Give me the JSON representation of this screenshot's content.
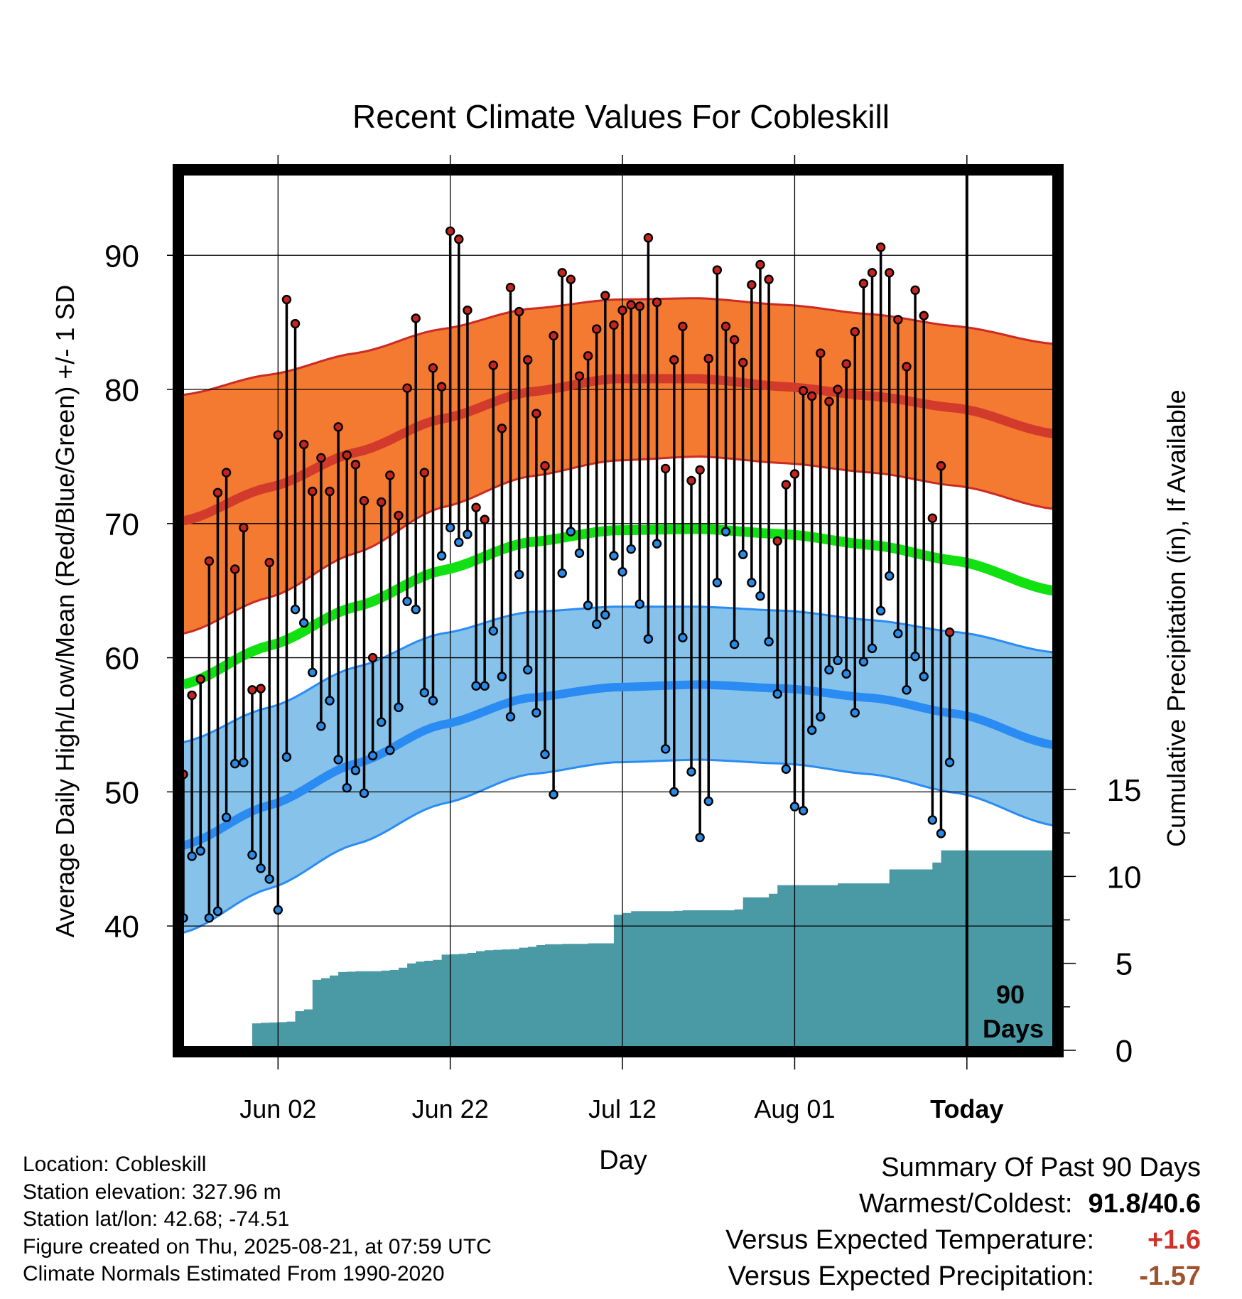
{
  "title": "Recent Climate Values For Cobleskill",
  "colors": {
    "high_band": "#f37a30",
    "high_line": "#d23a2c",
    "high_edge": "#cc2a24",
    "low_band": "#86c2ea",
    "low_line": "#2a8cf2",
    "low_edge": "#2a8cf2",
    "mean_line": "#11e011",
    "precip": "#4a9aa6",
    "high_marker": "#c8241f",
    "low_marker": "#2a8ae6"
  },
  "chart_data": {
    "type": "line",
    "title": "Recent Climate Values For Cobleskill",
    "xlabel": "Day",
    "ylabel": "Average Daily High/Low/Mean (Red/Blue/Green) +/- 1 SD",
    "y2label": "Cumulative Precipitation (in), If Available",
    "ylim": [
      31,
      96
    ],
    "y2lim": [
      0,
      28
    ],
    "x_ticks": [
      "Jun 02",
      "Jun 22",
      "Jul 12",
      "Aug 01",
      "Today"
    ],
    "y_ticks": [
      40,
      50,
      60,
      70,
      80,
      90
    ],
    "y2_ticks": [
      0,
      5,
      10,
      15
    ],
    "x_range_days": [
      "2025-05-22",
      "2025-08-31"
    ],
    "annotation": "90 Days",
    "today": "2025-08-21",
    "grid": true,
    "normals": {
      "dates": [
        "2025-05-22",
        "2025-06-01",
        "2025-06-11",
        "2025-06-21",
        "2025-07-01",
        "2025-07-11",
        "2025-07-21",
        "2025-07-31",
        "2025-08-10",
        "2025-08-20",
        "2025-08-31"
      ],
      "high_mean": [
        70.2,
        72.7,
        75.3,
        77.8,
        79.8,
        80.8,
        80.8,
        80.2,
        79.5,
        78.6,
        76.7
      ],
      "high_upper": [
        79.6,
        81.1,
        82.7,
        84.5,
        86.0,
        86.7,
        86.8,
        86.3,
        85.6,
        84.7,
        83.4
      ],
      "high_lower": [
        61.8,
        64.5,
        67.8,
        71.2,
        73.5,
        74.7,
        75.0,
        74.5,
        73.8,
        72.8,
        71.1
      ],
      "mean": [
        58.0,
        60.9,
        63.8,
        66.5,
        68.6,
        69.5,
        69.6,
        69.2,
        68.4,
        67.2,
        65.0
      ],
      "low_mean": [
        46.0,
        49.0,
        52.1,
        55.0,
        57.0,
        57.8,
        58.0,
        57.7,
        57.0,
        55.8,
        53.5
      ],
      "low_upper": [
        53.7,
        56.3,
        59.3,
        61.8,
        63.4,
        63.8,
        63.8,
        63.5,
        62.8,
        61.9,
        60.4
      ],
      "low_lower": [
        39.5,
        42.8,
        46.1,
        49.1,
        51.3,
        52.2,
        52.4,
        52.1,
        51.3,
        49.9,
        47.5
      ]
    },
    "daily": {
      "start": "2025-05-22",
      "high": [
        51.3,
        57.2,
        58.4,
        67.2,
        72.3,
        73.8,
        66.6,
        69.7,
        57.6,
        57.7,
        67.1,
        76.6,
        86.7,
        84.9,
        75.9,
        72.4,
        74.9,
        72.4,
        77.2,
        75.1,
        74.4,
        71.7,
        60.0,
        71.6,
        73.6,
        70.6,
        80.1,
        85.3,
        73.8,
        81.6,
        80.2,
        91.8,
        91.2,
        85.9,
        71.2,
        70.3,
        81.8,
        77.1,
        87.6,
        85.8,
        82.2,
        78.2,
        74.3,
        84.0,
        88.7,
        88.2,
        81.0,
        82.5,
        84.5,
        87.0,
        84.8,
        85.9,
        86.3,
        86.2,
        91.3,
        86.5,
        74.1,
        82.2,
        84.7,
        73.2,
        74.0,
        82.3,
        88.9,
        84.7,
        83.7,
        82.0,
        87.8,
        89.3,
        88.2,
        68.7,
        72.9,
        73.7,
        79.9,
        79.5,
        82.7,
        79.1,
        80.0,
        81.9,
        84.3,
        87.9,
        88.7,
        90.6,
        88.7,
        85.2,
        81.7,
        87.4,
        85.5,
        70.4,
        74.3,
        61.9
      ],
      "low": [
        40.6,
        45.2,
        45.6,
        40.6,
        41.1,
        48.1,
        52.1,
        52.2,
        45.3,
        44.3,
        43.5,
        41.2,
        52.6,
        63.6,
        62.6,
        58.9,
        54.9,
        56.8,
        52.4,
        50.3,
        51.6,
        49.9,
        52.7,
        55.2,
        53.1,
        56.3,
        64.2,
        63.6,
        57.4,
        56.8,
        67.6,
        69.7,
        68.6,
        69.2,
        57.9,
        57.9,
        62.0,
        58.6,
        55.6,
        66.2,
        59.1,
        55.9,
        52.8,
        49.8,
        66.3,
        69.4,
        67.8,
        63.9,
        62.5,
        63.2,
        67.6,
        66.4,
        68.1,
        64.0,
        61.4,
        68.5,
        53.2,
        50.0,
        61.5,
        51.5,
        46.6,
        49.3,
        65.6,
        69.4,
        61.0,
        67.7,
        65.6,
        64.6,
        61.2,
        57.3,
        51.7,
        48.9,
        48.6,
        54.6,
        55.6,
        59.1,
        59.8,
        58.8,
        55.9,
        59.7,
        60.7,
        63.5,
        66.1,
        61.8,
        57.6,
        60.1,
        58.6,
        47.9,
        46.9,
        52.2
      ]
    },
    "precip": {
      "start": "2025-05-22",
      "cumulative": [
        0,
        0,
        0,
        0,
        0,
        0,
        0,
        0,
        1.55,
        1.58,
        1.6,
        1.62,
        1.65,
        2.25,
        2.35,
        4.05,
        4.15,
        4.3,
        4.5,
        4.52,
        4.55,
        4.55,
        4.55,
        4.58,
        4.62,
        4.75,
        5.0,
        5.1,
        5.15,
        5.2,
        5.5,
        5.52,
        5.55,
        5.6,
        5.7,
        5.75,
        5.78,
        5.8,
        5.82,
        5.9,
        5.95,
        6.05,
        6.1,
        6.1,
        6.12,
        6.12,
        6.12,
        6.15,
        6.15,
        6.15,
        7.8,
        7.9,
        8.0,
        8.0,
        8.0,
        8.0,
        8.0,
        8.02,
        8.05,
        8.05,
        8.05,
        8.05,
        8.05,
        8.05,
        8.1,
        8.8,
        8.8,
        8.8,
        9.0,
        9.5,
        9.5,
        9.5,
        9.5,
        9.5,
        9.5,
        9.5,
        9.6,
        9.6,
        9.6,
        9.6,
        9.6,
        9.6,
        10.4,
        10.4,
        10.4,
        10.4,
        10.4,
        10.8,
        11.5,
        11.5,
        11.5,
        11.5,
        11.5,
        11.5,
        11.5,
        11.5,
        11.5,
        11.5,
        11.5,
        11.5,
        11.5
      ]
    }
  },
  "footer_left": {
    "location": "Location: Cobleskill",
    "elevation": "Station elevation: 327.96 m",
    "latlon": "Station lat/lon: 42.68; -74.51",
    "created": "Figure created on Thu, 2025-08-21, at 07:59 UTC",
    "normals": "Climate Normals Estimated From 1990-2020"
  },
  "summary": {
    "heading": "Summary Of Past 90 Days",
    "warmest_coldest_label": "Warmest/Coldest:",
    "warmest": "91.8",
    "sep": "/",
    "coldest": "40.6",
    "temp_label": "Versus Expected Temperature:",
    "temp_value": "+1.6",
    "temp_color": "#d0312a",
    "precip_label": "Versus Expected Precipitation:",
    "precip_value": "-1.57",
    "precip_color": "#a0522d"
  }
}
